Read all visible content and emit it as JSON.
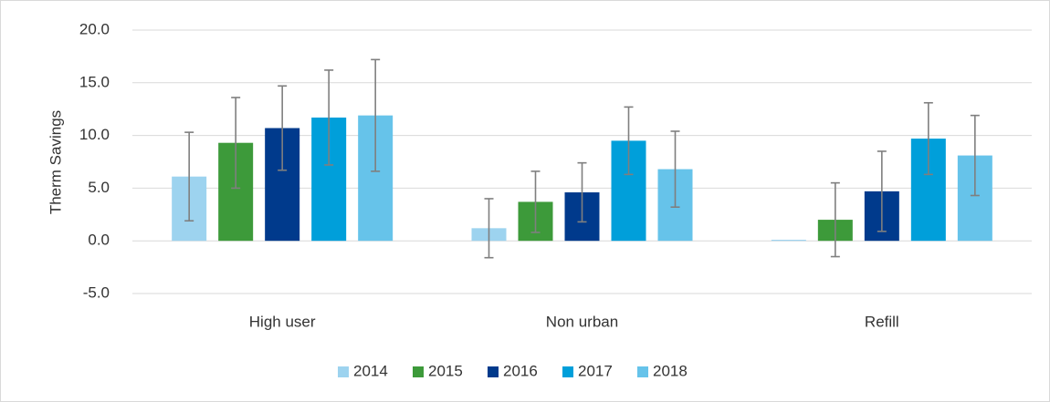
{
  "chart_data": {
    "type": "bar",
    "ylabel": "Therm Savings",
    "categories": [
      "High user",
      "Non urban",
      "Refill"
    ],
    "series": [
      {
        "name": "2014",
        "color": "#9dd3ef",
        "values": [
          6.1,
          1.2,
          0.1
        ],
        "errors": [
          4.2,
          2.8,
          null
        ]
      },
      {
        "name": "2015",
        "color": "#3d9a3a",
        "values": [
          9.3,
          3.7,
          2.0
        ],
        "errors": [
          4.3,
          2.9,
          3.5
        ]
      },
      {
        "name": "2016",
        "color": "#003a8c",
        "values": [
          10.7,
          4.6,
          4.7
        ],
        "errors": [
          4.0,
          2.8,
          3.8
        ]
      },
      {
        "name": "2017",
        "color": "#009fda",
        "values": [
          11.7,
          9.5,
          9.7
        ],
        "errors": [
          4.5,
          3.2,
          3.4
        ]
      },
      {
        "name": "2018",
        "color": "#66c3ea",
        "values": [
          11.9,
          6.8,
          8.1
        ],
        "errors": [
          5.3,
          3.6,
          3.8
        ]
      }
    ],
    "ylim": [
      -5,
      20
    ],
    "yticks": [
      {
        "value": -5,
        "label": "-5.0"
      },
      {
        "value": 0,
        "label": "0.0"
      },
      {
        "value": 5,
        "label": "5.0"
      },
      {
        "value": 10,
        "label": "10.0"
      },
      {
        "value": 15,
        "label": "15.0"
      },
      {
        "value": 20,
        "label": "20.0"
      }
    ],
    "grid": true,
    "legend": "bottom"
  }
}
